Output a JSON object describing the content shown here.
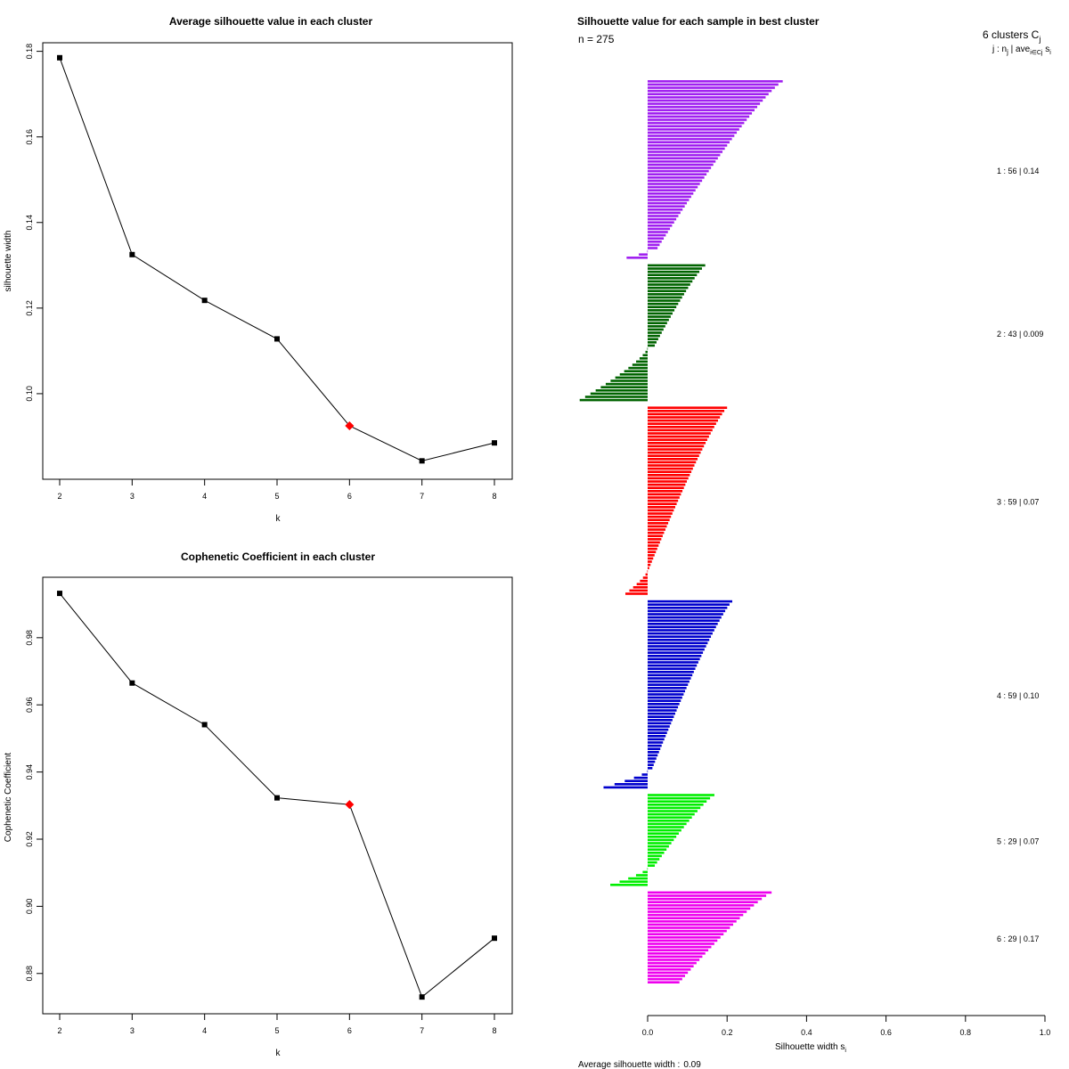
{
  "chart_data": [
    {
      "type": "line",
      "title": "Average silhouette value in each cluster",
      "xlabel": "k",
      "ylabel": "silhouette width",
      "x": [
        2,
        3,
        4,
        5,
        6,
        7,
        8
      ],
      "y": [
        0.1785,
        0.1325,
        0.1218,
        0.1128,
        0.0925,
        0.0843,
        0.0885
      ],
      "highlight_x": 6,
      "xlim": [
        2,
        8
      ],
      "ylim": [
        0.08,
        0.182
      ],
      "x_ticks": [
        "2",
        "3",
        "4",
        "5",
        "6",
        "7",
        "8"
      ],
      "y_ticks": [
        0.1,
        0.12,
        0.14,
        0.16,
        0.18
      ],
      "y_tick_labels": [
        "0.10",
        "0.12",
        "0.14",
        "0.16",
        "0.18"
      ],
      "line_color": "#000000",
      "marker_color": "#000000",
      "highlight_color": "#ff0000"
    },
    {
      "type": "line",
      "title": "Cophenetic Coefficient in each cluster",
      "xlabel": "k",
      "ylabel": "Cophenetic Coefficient",
      "x": [
        2,
        3,
        4,
        5,
        6,
        7,
        8
      ],
      "y": [
        0.9932,
        0.9665,
        0.9541,
        0.9323,
        0.9303,
        0.873,
        0.8905
      ],
      "highlight_x": 6,
      "xlim": [
        2,
        8
      ],
      "ylim": [
        0.868,
        0.998
      ],
      "x_ticks": [
        "2",
        "3",
        "4",
        "5",
        "6",
        "7",
        "8"
      ],
      "y_ticks": [
        0.88,
        0.9,
        0.92,
        0.94,
        0.96,
        0.98
      ],
      "y_tick_labels": [
        "0.88",
        "0.90",
        "0.92",
        "0.94",
        "0.96",
        "0.98"
      ],
      "line_color": "#000000",
      "marker_color": "#000000",
      "highlight_color": "#ff0000"
    },
    {
      "type": "bar",
      "orientation": "horizontal",
      "title": "Silhouette value for each sample in best cluster",
      "subtitle": "n = 275",
      "xlabel": "Silhouette width s",
      "xlabel_subscript": "i",
      "xlim": [
        0,
        1
      ],
      "x_ticks": [
        0.0,
        0.2,
        0.4,
        0.6,
        0.8,
        1.0
      ],
      "x_tick_labels": [
        "0.0",
        "0.2",
        "0.4",
        "0.6",
        "0.8",
        "1.0"
      ],
      "legend_header_1": "6  clusters  C",
      "legend_header_1_sub": "j",
      "legend_header_2": "j :  n",
      "legend_header_2_sub": "j",
      "legend_header_2_rest": " | ave",
      "legend_header_2_sub2": "i∈Cj",
      "legend_header_2_end": " s",
      "legend_header_2_sub3": "i",
      "footer_label": "Average silhouette width :",
      "footer_value": "0.09",
      "clusters": [
        {
          "id": 1,
          "n": 56,
          "avg_text": "0.14",
          "label": "1 :  56  |  0.14",
          "color": "#a020f0",
          "max": 0.34,
          "min": 0.025,
          "neg_count": 3,
          "neg_min": -0.052
        },
        {
          "id": 2,
          "n": 43,
          "avg_text": "0.009",
          "label": "2 :  43  |  0.009",
          "color": "#006400",
          "max": 0.145,
          "min": 0.018,
          "neg_count": 17,
          "neg_min": -0.17
        },
        {
          "id": 3,
          "n": 59,
          "avg_text": "0.07",
          "label": "3 :  59  |  0.07",
          "color": "#ff0000",
          "max": 0.2,
          "min": 0.004,
          "neg_count": 8,
          "neg_min": -0.055
        },
        {
          "id": 4,
          "n": 59,
          "avg_text": "0.10",
          "label": "4 :  59  |  0.10",
          "color": "#0000cd",
          "max": 0.213,
          "min": 0.012,
          "neg_count": 6,
          "neg_min": -0.11
        },
        {
          "id": 5,
          "n": 29,
          "avg_text": "0.07",
          "label": "5 :  29  |  0.07",
          "color": "#00ee00",
          "max": 0.168,
          "min": 0.018,
          "neg_count": 6,
          "neg_min": -0.093
        },
        {
          "id": 6,
          "n": 29,
          "avg_text": "0.17",
          "label": "6 :  29  |  0.17",
          "color": "#ee00ee",
          "max": 0.312,
          "min": 0.08,
          "neg_count": 0,
          "neg_min": 0
        }
      ]
    }
  ]
}
